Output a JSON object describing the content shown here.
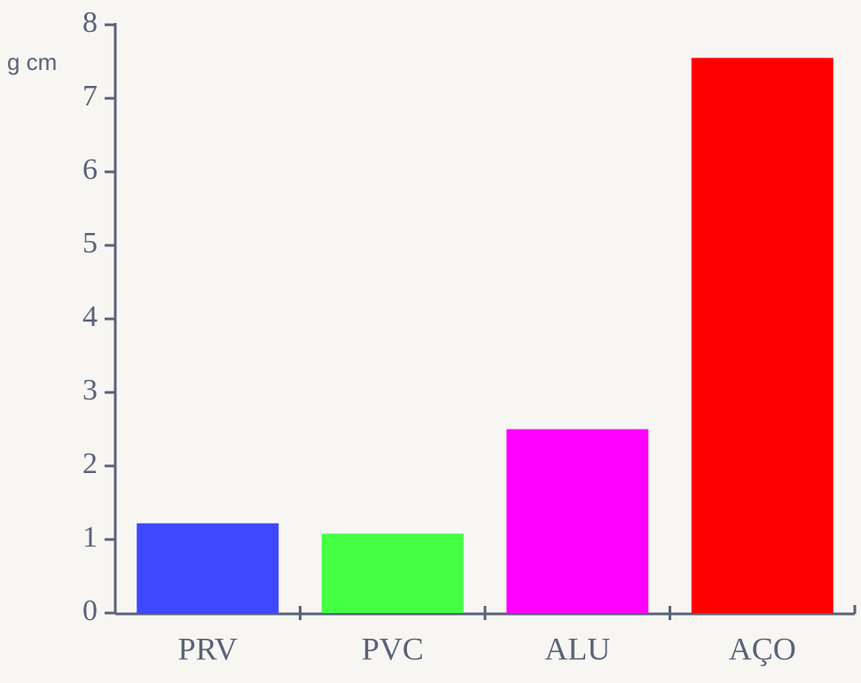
{
  "chart_data": {
    "type": "bar",
    "y_label": "g cm",
    "categories": [
      "PRV",
      "PVC",
      "ALU",
      "AÇO"
    ],
    "values": [
      1.22,
      1.08,
      2.5,
      7.55
    ],
    "colors": [
      "#3f48ff",
      "#44ff44",
      "#ff00ff",
      "#ff0000"
    ],
    "ylim": [
      0,
      8
    ],
    "yticks": [
      0,
      1,
      2,
      3,
      4,
      5,
      6,
      7,
      8
    ]
  }
}
